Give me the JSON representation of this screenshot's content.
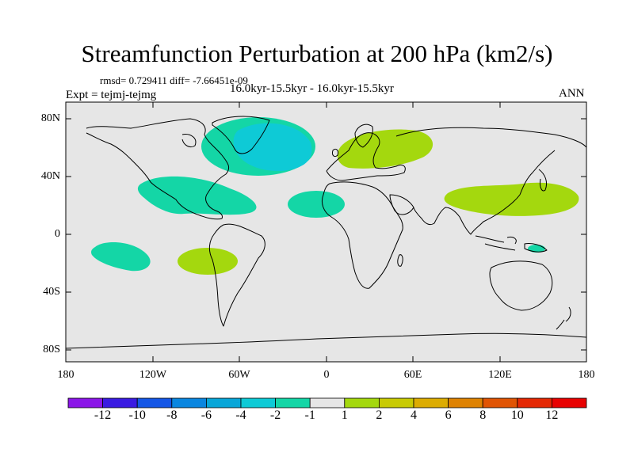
{
  "title": "Streamfunction Perturbation at 200 hPa (km2/s)",
  "stats": "rmsd= 0.729411 diff= -7.66451e-09",
  "period": "16.0kyr-15.5kyr - 16.0kyr-15.5kyr",
  "expt": "Expt = tejmj-tejmg",
  "season": "ANN",
  "lat_labels": [
    "80N",
    "40N",
    "0",
    "40S",
    "80S"
  ],
  "lon_labels": [
    "180",
    "120W",
    "60W",
    "0",
    "60E",
    "120E",
    "180"
  ],
  "colorbar": {
    "labels": [
      "-12",
      "-10",
      "-8",
      "-6",
      "-4",
      "-2",
      "-1",
      "1",
      "2",
      "4",
      "6",
      "8",
      "10",
      "12"
    ],
    "colors": [
      "#8b16e8",
      "#3a1be2",
      "#1456e6",
      "#0a86e0",
      "#08a6d8",
      "#0ecad6",
      "#14d6a6",
      "#e6e6e6",
      "#a4d80e",
      "#c8ca04",
      "#dcac02",
      "#de8202",
      "#e05404",
      "#e42804",
      "#e80202"
    ]
  },
  "anomalies": [
    {
      "region": "North Atlantic / Greenland",
      "level": "-4"
    },
    {
      "region": "Greenland periphery",
      "level": "-2"
    },
    {
      "region": "Gulf of Mexico",
      "level": "-2"
    },
    {
      "region": "North Africa",
      "level": "-2"
    },
    {
      "region": "Central Pacific",
      "level": "-2"
    },
    {
      "region": "Southeast Pacific",
      "level": "2"
    },
    {
      "region": "Scandinavia / Russia",
      "level": "2"
    },
    {
      "region": "East Asia / West Pacific",
      "level": "2"
    },
    {
      "region": "New Guinea",
      "level": "-2"
    }
  ]
}
